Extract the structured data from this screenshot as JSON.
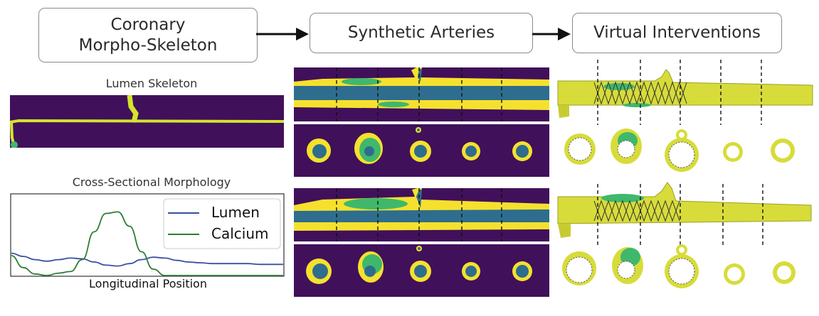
{
  "stage1": {
    "line1": "Coronary",
    "line2": "Morpho-Skeleton"
  },
  "stage2": {
    "title": "Synthetic Arteries"
  },
  "stage3": {
    "title": "Virtual Interventions"
  },
  "skeleton": {
    "title": "Lumen Skeleton"
  },
  "morphology": {
    "title": "Cross-Sectional Morphology",
    "xlabel": "Longitudinal Position",
    "legend": {
      "lumen": "Lumen",
      "calcium": "Calcium"
    }
  },
  "colors": {
    "background": "#41105a",
    "wall": "#f5e12d",
    "lumen": "#2e6d8e",
    "calcium": "#3fb86c",
    "stent_wall": "#d7dc3a",
    "lumen_line": "#3a4fa3",
    "calcium_line": "#2e7d32"
  },
  "chart_data": {
    "type": "line",
    "xlabel": "Longitudinal Position",
    "series": [
      {
        "name": "Lumen",
        "values": [
          0.28,
          0.24,
          0.2,
          0.18,
          0.2,
          0.22,
          0.21,
          0.17,
          0.13,
          0.12,
          0.15,
          0.2,
          0.23,
          0.22,
          0.19,
          0.17,
          0.16,
          0.15,
          0.15,
          0.15,
          0.15,
          0.14,
          0.14,
          0.14
        ]
      },
      {
        "name": "Calcium",
        "values": [
          0.25,
          0.1,
          0.02,
          0.0,
          0.03,
          0.05,
          0.2,
          0.55,
          0.78,
          0.8,
          0.62,
          0.3,
          0.08,
          0.0,
          0.0,
          0.0,
          0.0,
          0.0,
          0.0,
          0.0,
          0.0,
          0.0,
          0.0,
          0.0
        ]
      }
    ]
  }
}
